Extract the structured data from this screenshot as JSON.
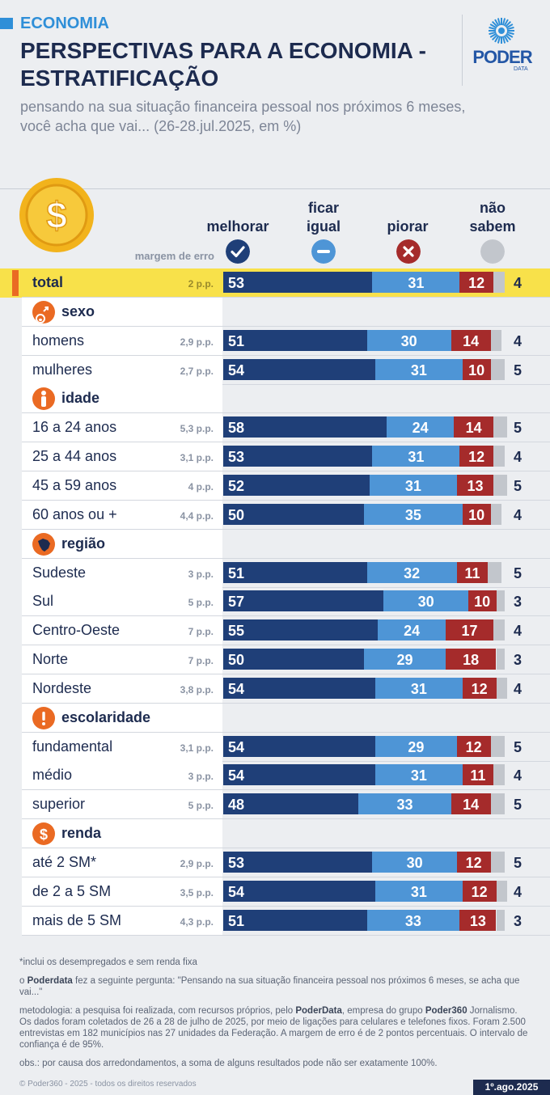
{
  "header": {
    "section": "ECONOMIA",
    "title": "PERSPECTIVAS PARA A ECONOMIA - ESTRATIFICAÇÃO",
    "subtitle": "pensando na sua situação financeira pessoal nos próximos 6 meses, você acha que vai... (26-28.jul.2025, em %)",
    "logo": "PODER",
    "logo_sub": "DATA"
  },
  "columns": {
    "margin_label": "margem de erro",
    "melhorar": "melhorar",
    "ficar_igual_1": "ficar",
    "ficar_igual_2": "igual",
    "piorar": "piorar",
    "nao_sabem_1": "não",
    "nao_sabem_2": "sabem",
    "icons": [
      "check-icon",
      "minus-icon",
      "x-icon",
      "blank-circle-icon"
    ]
  },
  "colors": {
    "melhorar": "#1f3f78",
    "ficar_igual": "#4e95d6",
    "piorar": "#a52b2b",
    "nao_sabem": "#c2c6cc",
    "highlight": "#f8e14a",
    "group_icon": "#ea6a23"
  },
  "chart_data": {
    "type": "bar",
    "stacked": true,
    "orientation": "horizontal",
    "unit": "%",
    "series_names": [
      "melhorar",
      "ficar igual",
      "piorar",
      "não sabem"
    ],
    "rows": [
      {
        "kind": "row",
        "label": "total",
        "margin": "2 p.p.",
        "values": [
          53,
          31,
          12,
          4
        ],
        "highlight": true
      },
      {
        "kind": "group",
        "label": "sexo",
        "icon": "gender-icon"
      },
      {
        "kind": "row",
        "label": "homens",
        "margin": "2,9 p.p.",
        "values": [
          51,
          30,
          14,
          4
        ]
      },
      {
        "kind": "row",
        "label": "mulheres",
        "margin": "2,7 p.p.",
        "values": [
          54,
          31,
          10,
          5
        ]
      },
      {
        "kind": "group",
        "label": "idade",
        "icon": "person-icon"
      },
      {
        "kind": "row",
        "label": "16 a 24 anos",
        "margin": "5,3 p.p.",
        "values": [
          58,
          24,
          14,
          5
        ]
      },
      {
        "kind": "row",
        "label": "25 a 44 anos",
        "margin": "3,1 p.p.",
        "values": [
          53,
          31,
          12,
          4
        ]
      },
      {
        "kind": "row",
        "label": "45 a 59 anos",
        "margin": "4 p.p.",
        "values": [
          52,
          31,
          13,
          5
        ]
      },
      {
        "kind": "row",
        "label": "60 anos ou +",
        "margin": "4,4 p.p.",
        "values": [
          50,
          35,
          10,
          4
        ]
      },
      {
        "kind": "group",
        "label": "região",
        "icon": "brazil-map-icon"
      },
      {
        "kind": "row",
        "label": "Sudeste",
        "margin": "3 p.p.",
        "values": [
          51,
          32,
          11,
          5
        ]
      },
      {
        "kind": "row",
        "label": "Sul",
        "margin": "5 p.p.",
        "values": [
          57,
          30,
          10,
          3
        ]
      },
      {
        "kind": "row",
        "label": "Centro-Oeste",
        "margin": "7 p.p.",
        "values": [
          55,
          24,
          17,
          4
        ]
      },
      {
        "kind": "row",
        "label": "Norte",
        "margin": "7 p.p.",
        "values": [
          50,
          29,
          18,
          3
        ]
      },
      {
        "kind": "row",
        "label": "Nordeste",
        "margin": "3,8 p.p.",
        "values": [
          54,
          31,
          12,
          4
        ]
      },
      {
        "kind": "group",
        "label": "escolaridade",
        "icon": "exclamation-icon"
      },
      {
        "kind": "row",
        "label": "fundamental",
        "margin": "3,1 p.p.",
        "values": [
          54,
          29,
          12,
          5
        ]
      },
      {
        "kind": "row",
        "label": "médio",
        "margin": "3 p.p.",
        "values": [
          54,
          31,
          11,
          4
        ]
      },
      {
        "kind": "row",
        "label": "superior",
        "margin": "5 p.p.",
        "values": [
          48,
          33,
          14,
          5
        ]
      },
      {
        "kind": "group",
        "label": "renda",
        "icon": "dollar-icon"
      },
      {
        "kind": "row",
        "label": "até 2 SM*",
        "margin": "2,9 p.p.",
        "values": [
          53,
          30,
          12,
          5
        ]
      },
      {
        "kind": "row",
        "label": "de 2 a 5 SM",
        "margin": "3,5 p.p.",
        "values": [
          54,
          31,
          12,
          4
        ]
      },
      {
        "kind": "row",
        "label": "mais de 5 SM",
        "margin": "4,3 p.p.",
        "values": [
          51,
          33,
          13,
          3
        ]
      }
    ]
  },
  "footer": {
    "note_footnote": "*inclui os desempregados e sem renda fixa",
    "note_question_brand": "Poderdata",
    "note_question_pre": "o ",
    "note_question_post": " fez a seguinte pergunta: \"Pensando na sua situação financeira pessoal nos próximos 6 meses, se acha que vai...\"",
    "method_pre": "metodologia: a pesquisa foi realizada, com recursos próprios, pelo ",
    "method_brand1": "PoderData",
    "method_mid": ", empresa do grupo ",
    "method_brand2": "Poder360",
    "method_post": " Jornalismo. Os dados foram coletados de 26 a 28 de julho de 2025, por meio de ligações para celulares e telefones fixos. Foram 2.500 entrevistas em 182 municípios nas 27 unidades da Federação. A margem de erro é de 2 pontos percentuais. O intervalo de confiança é de 95%.",
    "obs": "obs.: por causa dos arredondamentos, a soma de alguns resultados pode não ser exatamente 100%.",
    "copyright": "© Poder360 - 2025 - todos os direitos reservados",
    "date": "1º.ago.2025"
  }
}
